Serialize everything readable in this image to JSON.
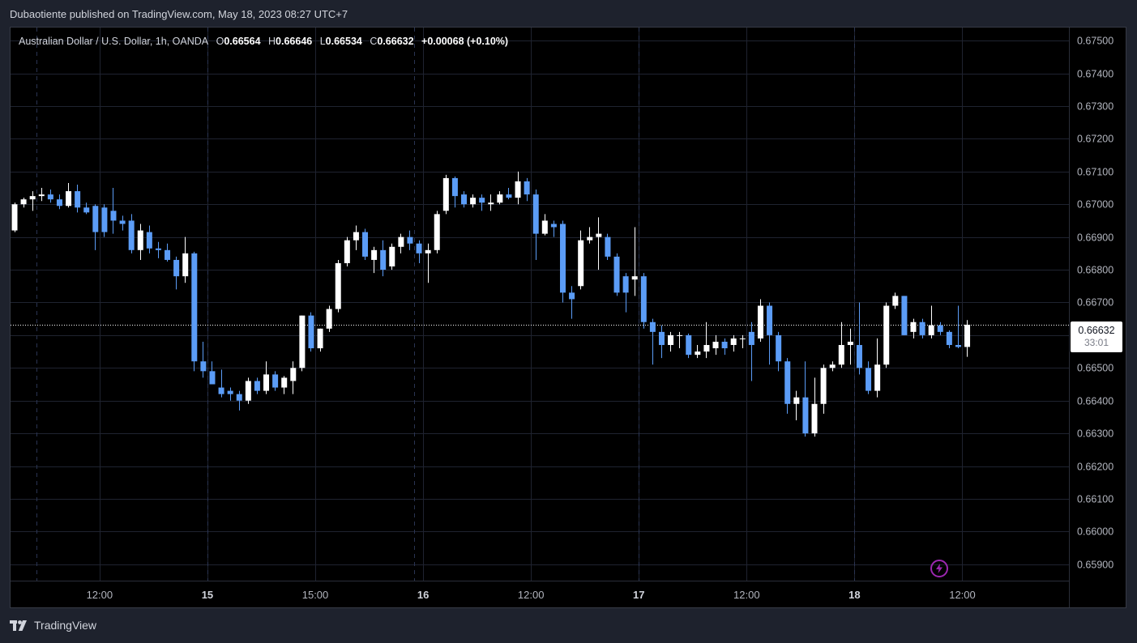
{
  "header": {
    "published_text": "Dubaotiente published on TradingView.com, May 18, 2023 08:27 UTC+7"
  },
  "legend": {
    "symbol": "Australian Dollar / U.S. Dollar, 1h, OANDA",
    "open_label": "O",
    "open": "0.66564",
    "high_label": "H",
    "high": "0.66646",
    "low_label": "L",
    "low": "0.66534",
    "close_label": "C",
    "close": "0.66632",
    "change": "+0.00068 (+0.10%)"
  },
  "price_badge": {
    "price": "0.66632",
    "countdown": "33:01"
  },
  "footer": {
    "brand": "TradingView"
  },
  "colors": {
    "up": "#ffffff",
    "down": "#5b9cf6",
    "grid": "#1f2330",
    "session": "#2a3452",
    "text": "#b2b5be",
    "background": "#000000",
    "accent": "#9c27b0"
  },
  "chart_data": {
    "type": "candlestick",
    "timeframe": "1h",
    "price_scale": {
      "min": 0.6585,
      "max": 0.6754,
      "ticks": [
        "0.67500",
        "0.67400",
        "0.67300",
        "0.67200",
        "0.67100",
        "0.67000",
        "0.66900",
        "0.66800",
        "0.66700",
        "0.66600",
        "0.66500",
        "0.66400",
        "0.66300",
        "0.66200",
        "0.66100",
        "0.66000",
        "0.65900"
      ]
    },
    "time_ticks": [
      {
        "label": "12:00",
        "bar": 9.5,
        "bold": false
      },
      {
        "label": "15",
        "bar": 21.5,
        "bold": true
      },
      {
        "label": "15:00",
        "bar": 33.5,
        "bold": false
      },
      {
        "label": "16",
        "bar": 45.5,
        "bold": true
      },
      {
        "label": "12:00",
        "bar": 57.5,
        "bold": false
      },
      {
        "label": "17",
        "bar": 69.5,
        "bold": true
      },
      {
        "label": "12:00",
        "bar": 81.5,
        "bold": false
      },
      {
        "label": "18",
        "bar": 93.5,
        "bold": true
      },
      {
        "label": "12:00",
        "bar": 105.5,
        "bold": false
      }
    ],
    "session_breaks": [
      2.5,
      21.5,
      44.5,
      69.5,
      93.5
    ],
    "current_price": 0.66632,
    "candles": [
      {
        "o": 0.6692,
        "h": 0.67005,
        "l": 0.66915,
        "c": 0.67
      },
      {
        "o": 0.67,
        "h": 0.6702,
        "l": 0.6699,
        "c": 0.67015
      },
      {
        "o": 0.67015,
        "h": 0.6704,
        "l": 0.6698,
        "c": 0.67025
      },
      {
        "o": 0.67025,
        "h": 0.6705,
        "l": 0.6701,
        "c": 0.6703
      },
      {
        "o": 0.6703,
        "h": 0.67045,
        "l": 0.67005,
        "c": 0.67015
      },
      {
        "o": 0.67015,
        "h": 0.6703,
        "l": 0.66985,
        "c": 0.66995
      },
      {
        "o": 0.66995,
        "h": 0.67065,
        "l": 0.6699,
        "c": 0.6704
      },
      {
        "o": 0.6704,
        "h": 0.6706,
        "l": 0.66975,
        "c": 0.6699
      },
      {
        "o": 0.6699,
        "h": 0.67005,
        "l": 0.6697,
        "c": 0.66975
      },
      {
        "o": 0.66995,
        "h": 0.67,
        "l": 0.6686,
        "c": 0.66915
      },
      {
        "o": 0.6699,
        "h": 0.67,
        "l": 0.669,
        "c": 0.66915
      },
      {
        "o": 0.6698,
        "h": 0.6705,
        "l": 0.6691,
        "c": 0.6695
      },
      {
        "o": 0.6695,
        "h": 0.66965,
        "l": 0.6692,
        "c": 0.6694
      },
      {
        "o": 0.6695,
        "h": 0.6697,
        "l": 0.6685,
        "c": 0.6686
      },
      {
        "o": 0.6686,
        "h": 0.6694,
        "l": 0.6683,
        "c": 0.6692
      },
      {
        "o": 0.66915,
        "h": 0.66935,
        "l": 0.6685,
        "c": 0.66865
      },
      {
        "o": 0.66865,
        "h": 0.66885,
        "l": 0.66835,
        "c": 0.6686
      },
      {
        "o": 0.6686,
        "h": 0.6688,
        "l": 0.66825,
        "c": 0.6683
      },
      {
        "o": 0.6683,
        "h": 0.6684,
        "l": 0.6674,
        "c": 0.6678
      },
      {
        "o": 0.6678,
        "h": 0.669,
        "l": 0.6676,
        "c": 0.6685
      },
      {
        "o": 0.6685,
        "h": 0.66855,
        "l": 0.6649,
        "c": 0.6652
      },
      {
        "o": 0.6652,
        "h": 0.6658,
        "l": 0.6647,
        "c": 0.6649
      },
      {
        "o": 0.6649,
        "h": 0.6652,
        "l": 0.6645,
        "c": 0.6645
      },
      {
        "o": 0.6644,
        "h": 0.66495,
        "l": 0.6641,
        "c": 0.6642
      },
      {
        "o": 0.6643,
        "h": 0.6644,
        "l": 0.664,
        "c": 0.6642
      },
      {
        "o": 0.6642,
        "h": 0.6643,
        "l": 0.6637,
        "c": 0.664
      },
      {
        "o": 0.664,
        "h": 0.6647,
        "l": 0.6639,
        "c": 0.6646
      },
      {
        "o": 0.6646,
        "h": 0.6647,
        "l": 0.6642,
        "c": 0.6643
      },
      {
        "o": 0.6643,
        "h": 0.6652,
        "l": 0.6642,
        "c": 0.6648
      },
      {
        "o": 0.6648,
        "h": 0.6649,
        "l": 0.6643,
        "c": 0.6644
      },
      {
        "o": 0.6644,
        "h": 0.66475,
        "l": 0.6642,
        "c": 0.6647
      },
      {
        "o": 0.6646,
        "h": 0.6652,
        "l": 0.6642,
        "c": 0.665
      },
      {
        "o": 0.665,
        "h": 0.6666,
        "l": 0.6649,
        "c": 0.6666
      },
      {
        "o": 0.6666,
        "h": 0.6667,
        "l": 0.6655,
        "c": 0.6656
      },
      {
        "o": 0.6656,
        "h": 0.6662,
        "l": 0.6655,
        "c": 0.6662
      },
      {
        "o": 0.6662,
        "h": 0.6669,
        "l": 0.6661,
        "c": 0.6668
      },
      {
        "o": 0.6668,
        "h": 0.6683,
        "l": 0.6667,
        "c": 0.6682
      },
      {
        "o": 0.6682,
        "h": 0.669,
        "l": 0.6681,
        "c": 0.6689
      },
      {
        "o": 0.6689,
        "h": 0.66935,
        "l": 0.6686,
        "c": 0.66915
      },
      {
        "o": 0.66915,
        "h": 0.66925,
        "l": 0.6683,
        "c": 0.6684
      },
      {
        "o": 0.6683,
        "h": 0.6687,
        "l": 0.6679,
        "c": 0.6686
      },
      {
        "o": 0.6686,
        "h": 0.6689,
        "l": 0.6678,
        "c": 0.668
      },
      {
        "o": 0.6681,
        "h": 0.6688,
        "l": 0.668,
        "c": 0.6687
      },
      {
        "o": 0.6687,
        "h": 0.6691,
        "l": 0.6685,
        "c": 0.669
      },
      {
        "o": 0.669,
        "h": 0.6692,
        "l": 0.6686,
        "c": 0.6688
      },
      {
        "o": 0.6688,
        "h": 0.6689,
        "l": 0.6682,
        "c": 0.6685
      },
      {
        "o": 0.6685,
        "h": 0.6688,
        "l": 0.6676,
        "c": 0.6686
      },
      {
        "o": 0.6686,
        "h": 0.6698,
        "l": 0.6685,
        "c": 0.6697
      },
      {
        "o": 0.6698,
        "h": 0.6709,
        "l": 0.6697,
        "c": 0.6708
      },
      {
        "o": 0.6708,
        "h": 0.67085,
        "l": 0.6699,
        "c": 0.67025
      },
      {
        "o": 0.6703,
        "h": 0.6704,
        "l": 0.6699,
        "c": 0.67
      },
      {
        "o": 0.67,
        "h": 0.6703,
        "l": 0.6699,
        "c": 0.6702
      },
      {
        "o": 0.6702,
        "h": 0.6703,
        "l": 0.6698,
        "c": 0.67005
      },
      {
        "o": 0.67,
        "h": 0.6703,
        "l": 0.6698,
        "c": 0.67005
      },
      {
        "o": 0.67005,
        "h": 0.6704,
        "l": 0.67,
        "c": 0.6703
      },
      {
        "o": 0.6703,
        "h": 0.6705,
        "l": 0.67015,
        "c": 0.6702
      },
      {
        "o": 0.6702,
        "h": 0.671,
        "l": 0.67,
        "c": 0.6707
      },
      {
        "o": 0.6707,
        "h": 0.6708,
        "l": 0.6701,
        "c": 0.6703
      },
      {
        "o": 0.6703,
        "h": 0.67045,
        "l": 0.6683,
        "c": 0.6691
      },
      {
        "o": 0.6691,
        "h": 0.6697,
        "l": 0.66905,
        "c": 0.6695
      },
      {
        "o": 0.6694,
        "h": 0.6695,
        "l": 0.669,
        "c": 0.6693
      },
      {
        "o": 0.6694,
        "h": 0.6695,
        "l": 0.667,
        "c": 0.6673
      },
      {
        "o": 0.6673,
        "h": 0.6675,
        "l": 0.6665,
        "c": 0.6671
      },
      {
        "o": 0.6675,
        "h": 0.6692,
        "l": 0.6674,
        "c": 0.6689
      },
      {
        "o": 0.6689,
        "h": 0.6693,
        "l": 0.6688,
        "c": 0.669
      },
      {
        "o": 0.669,
        "h": 0.6696,
        "l": 0.668,
        "c": 0.6691
      },
      {
        "o": 0.669,
        "h": 0.6691,
        "l": 0.6683,
        "c": 0.6684
      },
      {
        "o": 0.6684,
        "h": 0.6685,
        "l": 0.6672,
        "c": 0.6673
      },
      {
        "o": 0.6678,
        "h": 0.6679,
        "l": 0.6667,
        "c": 0.6673
      },
      {
        "o": 0.6677,
        "h": 0.6693,
        "l": 0.6672,
        "c": 0.6678
      },
      {
        "o": 0.6678,
        "h": 0.6679,
        "l": 0.6662,
        "c": 0.6664
      },
      {
        "o": 0.6664,
        "h": 0.6665,
        "l": 0.6651,
        "c": 0.6661
      },
      {
        "o": 0.6661,
        "h": 0.6663,
        "l": 0.6653,
        "c": 0.6657
      },
      {
        "o": 0.6657,
        "h": 0.6661,
        "l": 0.6655,
        "c": 0.666
      },
      {
        "o": 0.666,
        "h": 0.6661,
        "l": 0.6656,
        "c": 0.666
      },
      {
        "o": 0.666,
        "h": 0.66605,
        "l": 0.6653,
        "c": 0.6654
      },
      {
        "o": 0.6654,
        "h": 0.6657,
        "l": 0.6653,
        "c": 0.6655
      },
      {
        "o": 0.6655,
        "h": 0.6664,
        "l": 0.6653,
        "c": 0.6657
      },
      {
        "o": 0.6656,
        "h": 0.666,
        "l": 0.6654,
        "c": 0.6658
      },
      {
        "o": 0.6658,
        "h": 0.6659,
        "l": 0.6654,
        "c": 0.6656
      },
      {
        "o": 0.6657,
        "h": 0.666,
        "l": 0.6655,
        "c": 0.6659
      },
      {
        "o": 0.6659,
        "h": 0.666,
        "l": 0.6656,
        "c": 0.6659
      },
      {
        "o": 0.6661,
        "h": 0.6664,
        "l": 0.6646,
        "c": 0.6657
      },
      {
        "o": 0.6659,
        "h": 0.6671,
        "l": 0.6658,
        "c": 0.6669
      },
      {
        "o": 0.6669,
        "h": 0.667,
        "l": 0.6651,
        "c": 0.666
      },
      {
        "o": 0.666,
        "h": 0.6661,
        "l": 0.6649,
        "c": 0.6652
      },
      {
        "o": 0.6652,
        "h": 0.6653,
        "l": 0.6636,
        "c": 0.6639
      },
      {
        "o": 0.6639,
        "h": 0.6643,
        "l": 0.6634,
        "c": 0.6641
      },
      {
        "o": 0.6641,
        "h": 0.6652,
        "l": 0.6629,
        "c": 0.663
      },
      {
        "o": 0.663,
        "h": 0.6647,
        "l": 0.6629,
        "c": 0.6639
      },
      {
        "o": 0.6639,
        "h": 0.6651,
        "l": 0.6636,
        "c": 0.665
      },
      {
        "o": 0.665,
        "h": 0.6652,
        "l": 0.6649,
        "c": 0.6651
      },
      {
        "o": 0.6651,
        "h": 0.6664,
        "l": 0.665,
        "c": 0.6657
      },
      {
        "o": 0.6657,
        "h": 0.6662,
        "l": 0.6651,
        "c": 0.6658
      },
      {
        "o": 0.6657,
        "h": 0.667,
        "l": 0.6648,
        "c": 0.665
      },
      {
        "o": 0.665,
        "h": 0.6652,
        "l": 0.6642,
        "c": 0.6643
      },
      {
        "o": 0.6643,
        "h": 0.6659,
        "l": 0.6641,
        "c": 0.6651
      },
      {
        "o": 0.6651,
        "h": 0.667,
        "l": 0.665,
        "c": 0.6669
      },
      {
        "o": 0.6669,
        "h": 0.6673,
        "l": 0.6668,
        "c": 0.6672
      },
      {
        "o": 0.6672,
        "h": 0.6672,
        "l": 0.666,
        "c": 0.666
      },
      {
        "o": 0.6661,
        "h": 0.6665,
        "l": 0.6659,
        "c": 0.6664
      },
      {
        "o": 0.6664,
        "h": 0.6665,
        "l": 0.6659,
        "c": 0.666
      },
      {
        "o": 0.666,
        "h": 0.6669,
        "l": 0.6659,
        "c": 0.6663
      },
      {
        "o": 0.6663,
        "h": 0.6664,
        "l": 0.666,
        "c": 0.6661
      },
      {
        "o": 0.6661,
        "h": 0.66615,
        "l": 0.6656,
        "c": 0.6657
      },
      {
        "o": 0.6657,
        "h": 0.6669,
        "l": 0.6656,
        "c": 0.66564
      },
      {
        "o": 0.66564,
        "h": 0.66646,
        "l": 0.66534,
        "c": 0.66632
      }
    ]
  }
}
